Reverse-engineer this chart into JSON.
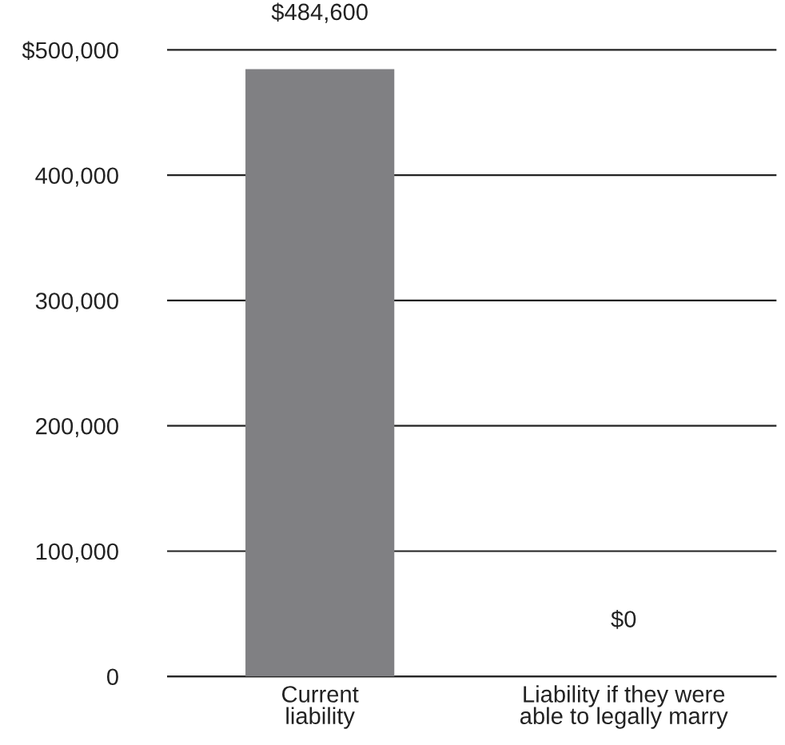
{
  "chart_data": {
    "type": "bar",
    "categories": [
      "Current\nliability",
      "Liability if they were\nable to legally marry"
    ],
    "values": [
      484600,
      0
    ],
    "value_labels": [
      "$484,600",
      "$0"
    ],
    "color": "#808083",
    "ylim": [
      0,
      500000
    ],
    "yticks": [
      0,
      {
        "value": 100000,
        "label": "100,000"
      },
      {
        "value": 200000,
        "label": "200,000"
      },
      {
        "value": 300000,
        "label": "300,000"
      },
      {
        "value": 400000,
        "label": "400,000"
      },
      {
        "value": 500000,
        "label": "$500,000"
      }
    ],
    "grid": "y"
  }
}
